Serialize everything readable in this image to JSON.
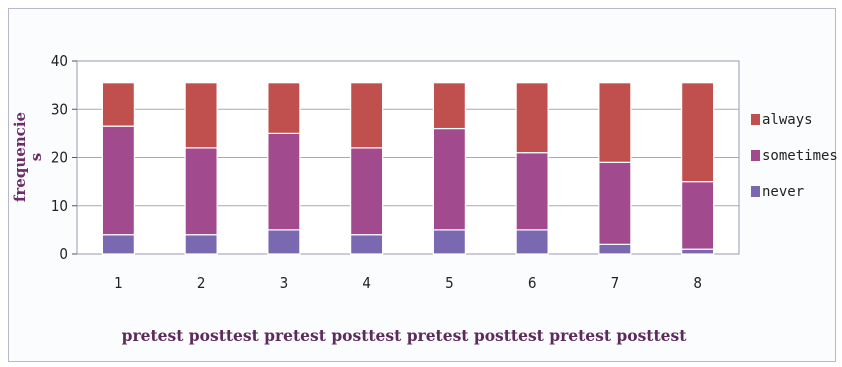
{
  "chart_data": {
    "type": "bar",
    "stacked": true,
    "title": "",
    "xlabel": "pretest posttest pretest posttest pretest posttest pretest posttest",
    "ylabel": "frequencie\ns",
    "ylim": [
      0,
      40
    ],
    "yticks": [
      "0",
      "10",
      "20",
      "30",
      "40"
    ],
    "grid": true,
    "legend": "right",
    "categories": [
      "1",
      "2",
      "3",
      "4",
      "5",
      "6",
      "7",
      "8"
    ],
    "series": [
      {
        "name": "never",
        "color": "#7a69b0",
        "values": [
          4,
          4,
          5,
          4,
          5,
          5,
          2,
          1
        ]
      },
      {
        "name": "sometimes",
        "color": "#a14a8e",
        "values": [
          22.5,
          18,
          20,
          18,
          21,
          16,
          17,
          14
        ]
      },
      {
        "name": "always",
        "color": "#c0504d",
        "values": [
          9,
          13.5,
          10.5,
          13.5,
          9.5,
          14.5,
          16.5,
          20.5
        ]
      }
    ]
  }
}
